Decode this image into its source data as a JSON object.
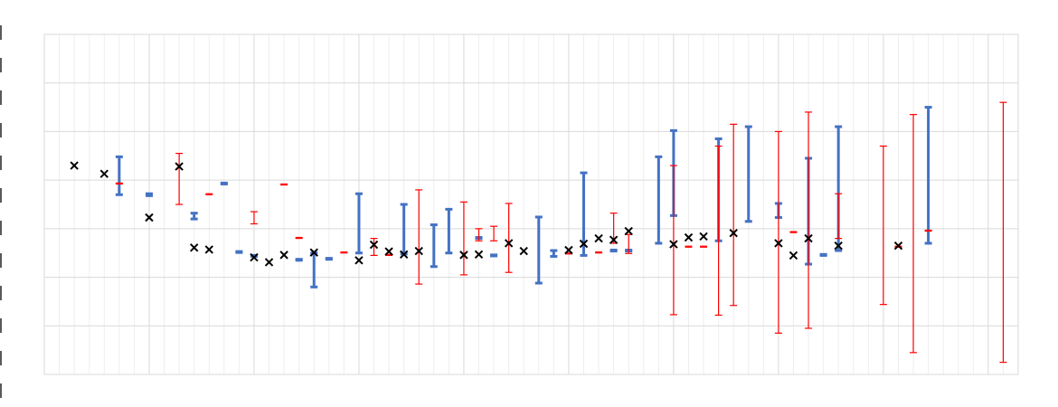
{
  "chart_data": {
    "type": "scatter",
    "title": "",
    "xlabel": "",
    "ylabel": "",
    "xlim": [
      0,
      65
    ],
    "ylim": [
      -2.5,
      4.5
    ],
    "grid": true,
    "legend": "none",
    "colors": {
      "points": "#000000",
      "blue": "#4472c4",
      "red": "#ff0000",
      "grid": "#d9d9d9",
      "grid_minor": "#eeeeee"
    },
    "points": [
      {
        "x": 2,
        "y": 1.8
      },
      {
        "x": 4,
        "y": 1.63
      },
      {
        "x": 7,
        "y": 0.73
      },
      {
        "x": 9,
        "y": 1.78
      },
      {
        "x": 10,
        "y": 0.11
      },
      {
        "x": 11,
        "y": 0.07
      },
      {
        "x": 14,
        "y": -0.09
      },
      {
        "x": 15,
        "y": -0.19
      },
      {
        "x": 16,
        "y": -0.04
      },
      {
        "x": 18,
        "y": 0.01
      },
      {
        "x": 21,
        "y": -0.15
      },
      {
        "x": 22,
        "y": 0.17
      },
      {
        "x": 23,
        "y": 0.03
      },
      {
        "x": 24,
        "y": -0.03
      },
      {
        "x": 25,
        "y": 0.04
      },
      {
        "x": 28,
        "y": -0.04
      },
      {
        "x": 29,
        "y": -0.03
      },
      {
        "x": 31,
        "y": 0.2
      },
      {
        "x": 32,
        "y": 0.04
      },
      {
        "x": 35,
        "y": 0.06
      },
      {
        "x": 36,
        "y": 0.19
      },
      {
        "x": 37,
        "y": 0.3
      },
      {
        "x": 38,
        "y": 0.27
      },
      {
        "x": 39,
        "y": 0.45
      },
      {
        "x": 42,
        "y": 0.18
      },
      {
        "x": 43,
        "y": 0.32
      },
      {
        "x": 44,
        "y": 0.34
      },
      {
        "x": 46,
        "y": 0.41
      },
      {
        "x": 49,
        "y": 0.2
      },
      {
        "x": 50,
        "y": -0.05
      },
      {
        "x": 51,
        "y": 0.3
      },
      {
        "x": 53,
        "y": 0.15
      },
      {
        "x": 57,
        "y": 0.15
      }
    ],
    "blue_bars": [
      {
        "x": 5,
        "low": 1.2,
        "high": 1.98
      },
      {
        "x": 7,
        "low": 1.18,
        "high": 1.22
      },
      {
        "x": 10,
        "low": 0.7,
        "high": 0.82
      },
      {
        "x": 12,
        "low": 1.42,
        "high": 1.44
      },
      {
        "x": 13,
        "low": 0.01,
        "high": 0.03
      },
      {
        "x": 14,
        "low": -0.07,
        "high": -0.05
      },
      {
        "x": 17,
        "low": -0.15,
        "high": -0.13
      },
      {
        "x": 18,
        "low": -0.7,
        "high": 0.0
      },
      {
        "x": 19,
        "low": -0.13,
        "high": -0.11
      },
      {
        "x": 21,
        "low": 0.0,
        "high": 1.22
      },
      {
        "x": 24,
        "low": -0.02,
        "high": 1.0
      },
      {
        "x": 26,
        "low": -0.28,
        "high": 0.58
      },
      {
        "x": 27,
        "low": 0.0,
        "high": 0.9
      },
      {
        "x": 29,
        "low": 0.3,
        "high": 0.32
      },
      {
        "x": 30,
        "low": -0.06,
        "high": -0.04
      },
      {
        "x": 33,
        "low": -0.62,
        "high": 0.74
      },
      {
        "x": 34,
        "low": -0.07,
        "high": 0.05
      },
      {
        "x": 36,
        "low": -0.05,
        "high": 1.65
      },
      {
        "x": 38,
        "low": 0.04,
        "high": 0.06
      },
      {
        "x": 39,
        "low": 0.04,
        "high": 0.06
      },
      {
        "x": 41,
        "low": 0.2,
        "high": 1.98
      },
      {
        "x": 42,
        "low": 0.77,
        "high": 2.52
      },
      {
        "x": 45,
        "low": 0.25,
        "high": 2.35
      },
      {
        "x": 47,
        "low": 0.65,
        "high": 2.6
      },
      {
        "x": 49,
        "low": 0.73,
        "high": 1.02
      },
      {
        "x": 51,
        "low": -0.23,
        "high": 1.95
      },
      {
        "x": 52,
        "low": -0.05,
        "high": -0.03
      },
      {
        "x": 53,
        "low": 0.05,
        "high": 2.6
      },
      {
        "x": 59,
        "low": 0.2,
        "high": 3.0
      }
    ],
    "red_bars": [
      {
        "x": 5,
        "low": 1.42,
        "high": 1.44
      },
      {
        "x": 9,
        "low": 1.0,
        "high": 2.05
      },
      {
        "x": 11,
        "low": 1.2,
        "high": 1.22
      },
      {
        "x": 14,
        "low": 0.6,
        "high": 0.85
      },
      {
        "x": 16,
        "low": 1.4,
        "high": 1.42
      },
      {
        "x": 17,
        "low": 0.3,
        "high": 0.32
      },
      {
        "x": 20,
        "low": 0.0,
        "high": 0.02
      },
      {
        "x": 22,
        "low": -0.05,
        "high": 0.3
      },
      {
        "x": 23,
        "low": -0.05,
        "high": -0.03
      },
      {
        "x": 25,
        "low": -0.64,
        "high": 1.3
      },
      {
        "x": 28,
        "low": -0.45,
        "high": 1.05
      },
      {
        "x": 29,
        "low": 0.25,
        "high": 0.5
      },
      {
        "x": 30,
        "low": 0.25,
        "high": 0.55
      },
      {
        "x": 31,
        "low": -0.4,
        "high": 1.02
      },
      {
        "x": 35,
        "low": -0.02,
        "high": 0.0
      },
      {
        "x": 37,
        "low": 0.0,
        "high": 0.02
      },
      {
        "x": 38,
        "low": 0.2,
        "high": 0.82
      },
      {
        "x": 39,
        "low": -0.01,
        "high": 0.38
      },
      {
        "x": 42,
        "low": -1.27,
        "high": 1.8
      },
      {
        "x": 43,
        "low": 0.12,
        "high": 0.14
      },
      {
        "x": 44,
        "low": 0.12,
        "high": 0.14
      },
      {
        "x": 45,
        "low": -1.28,
        "high": 2.2
      },
      {
        "x": 46,
        "low": -1.08,
        "high": 2.65
      },
      {
        "x": 49,
        "low": -1.65,
        "high": 2.5
      },
      {
        "x": 50,
        "low": 0.42,
        "high": 0.44
      },
      {
        "x": 51,
        "low": -1.55,
        "high": 2.9
      },
      {
        "x": 53,
        "low": 0.3,
        "high": 1.22
      },
      {
        "x": 56,
        "low": -1.06,
        "high": 2.2
      },
      {
        "x": 57,
        "low": 0.12,
        "high": 0.14
      },
      {
        "x": 58,
        "low": -2.05,
        "high": 2.85
      },
      {
        "x": 59,
        "low": 0.45,
        "high": 0.47
      },
      {
        "x": 64,
        "low": -2.25,
        "high": 3.1
      }
    ]
  }
}
